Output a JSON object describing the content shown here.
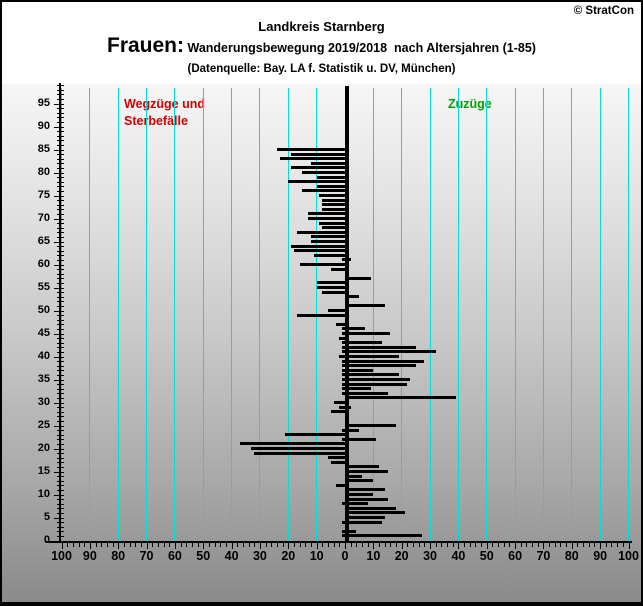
{
  "header": {
    "copyright": "© StratCon",
    "title": "Landkreis Starnberg",
    "subtitle_prefix": "Frauen:",
    "subtitle_text": " Wanderungsbewegung 2019/2018  nach Altersjahren (1-85)",
    "source": "(Datenquelle: Bay. LA f. Statistik u. DV, München)"
  },
  "chart_data": {
    "type": "bar",
    "orientation": "horizontal-pyramid",
    "title": "Landkreis Starnberg",
    "subtitle": "Frauen: Wanderungsbewegung 2019/2018 nach Altersjahren (1-85)",
    "source": "(Datenquelle: Bay. LA f. Statistik u. DV, München)",
    "legend": {
      "left_label_line1": "Wegzüge und",
      "left_label_line2": "Sterbefälle",
      "left_color": "#d40000",
      "right_label": "Zuzüge",
      "right_color": "#00a400"
    },
    "colors": {
      "gridline": "#00dede",
      "bar": "#000000",
      "axis": "#000000"
    },
    "x_axis": {
      "min": -100,
      "max": 100,
      "major_tick_step": 10,
      "minor_tick_step": 2,
      "major_tick_values": [
        -100,
        -90,
        -80,
        -70,
        -60,
        -50,
        -40,
        -30,
        -20,
        -10,
        0,
        10,
        20,
        30,
        40,
        50,
        60,
        70,
        80,
        90,
        100
      ],
      "labels": [
        "100",
        "90",
        "80",
        "70",
        "60",
        "50",
        "40",
        "30",
        "20",
        "10",
        "0",
        "10",
        "20",
        "30",
        "40",
        "50",
        "60",
        "70",
        "80",
        "90",
        "100"
      ]
    },
    "y_axis": {
      "min": 0,
      "max": 99,
      "label_step": 5,
      "minor_tick_step": 1,
      "labels": [
        "0",
        "5",
        "10",
        "15",
        "20",
        "25",
        "30",
        "35",
        "40",
        "45",
        "50",
        "55",
        "60",
        "65",
        "70",
        "75",
        "80",
        "85",
        "90",
        "95"
      ]
    },
    "series": [
      {
        "name": "Wegzüge und Sterbefälle",
        "side": "left",
        "color": "#000000"
      },
      {
        "name": "Zuzüge",
        "side": "right",
        "color": "#000000"
      }
    ],
    "bars_note": "triples: [age, wegzuege_sterbefaelle(left), zuzuege(right)]",
    "bars": [
      [
        1,
        1,
        27
      ],
      [
        2,
        1,
        4
      ],
      [
        3,
        0,
        0
      ],
      [
        4,
        1,
        13
      ],
      [
        5,
        0,
        14
      ],
      [
        6,
        0,
        21
      ],
      [
        7,
        0,
        18
      ],
      [
        8,
        1,
        8
      ],
      [
        9,
        0,
        15
      ],
      [
        10,
        0,
        10
      ],
      [
        11,
        0,
        14
      ],
      [
        12,
        3,
        0
      ],
      [
        13,
        0,
        10
      ],
      [
        14,
        0,
        6
      ],
      [
        15,
        0,
        15
      ],
      [
        16,
        0,
        12
      ],
      [
        17,
        5,
        0
      ],
      [
        18,
        6,
        0
      ],
      [
        19,
        32,
        0
      ],
      [
        20,
        33,
        0
      ],
      [
        21,
        37,
        0
      ],
      [
        22,
        1,
        11
      ],
      [
        23,
        21,
        0
      ],
      [
        24,
        1,
        5
      ],
      [
        25,
        0,
        18
      ],
      [
        26,
        0,
        0
      ],
      [
        27,
        0,
        0
      ],
      [
        28,
        5,
        0
      ],
      [
        29,
        2,
        2
      ],
      [
        30,
        4,
        0
      ],
      [
        31,
        0,
        39
      ],
      [
        32,
        1,
        15
      ],
      [
        33,
        1,
        9
      ],
      [
        34,
        1,
        22
      ],
      [
        35,
        1,
        23
      ],
      [
        36,
        1,
        19
      ],
      [
        37,
        1,
        10
      ],
      [
        38,
        1,
        25
      ],
      [
        39,
        1,
        28
      ],
      [
        40,
        2,
        19
      ],
      [
        41,
        1,
        32
      ],
      [
        42,
        1,
        25
      ],
      [
        43,
        1,
        13
      ],
      [
        44,
        2,
        0
      ],
      [
        45,
        1,
        16
      ],
      [
        46,
        1,
        7
      ],
      [
        47,
        3,
        0
      ],
      [
        48,
        0,
        0
      ],
      [
        49,
        17,
        0
      ],
      [
        50,
        6,
        0
      ],
      [
        51,
        0,
        14
      ],
      [
        52,
        0,
        0
      ],
      [
        53,
        0,
        5
      ],
      [
        54,
        8,
        0
      ],
      [
        55,
        10,
        0
      ],
      [
        56,
        10,
        0
      ],
      [
        57,
        0,
        9
      ],
      [
        58,
        0,
        0
      ],
      [
        59,
        5,
        0
      ],
      [
        60,
        16,
        0
      ],
      [
        61,
        1,
        2
      ],
      [
        62,
        11,
        0
      ],
      [
        63,
        18,
        0
      ],
      [
        64,
        19,
        0
      ],
      [
        65,
        12,
        0
      ],
      [
        66,
        12,
        0
      ],
      [
        67,
        17,
        0
      ],
      [
        68,
        8,
        0
      ],
      [
        69,
        9,
        0
      ],
      [
        70,
        13,
        0
      ],
      [
        71,
        13,
        0
      ],
      [
        72,
        8,
        0
      ],
      [
        73,
        8,
        0
      ],
      [
        74,
        8,
        0
      ],
      [
        75,
        9,
        0
      ],
      [
        76,
        15,
        0
      ],
      [
        77,
        10,
        0
      ],
      [
        78,
        20,
        0
      ],
      [
        79,
        10,
        0
      ],
      [
        80,
        15,
        0
      ],
      [
        81,
        19,
        0
      ],
      [
        82,
        12,
        0
      ],
      [
        83,
        23,
        0
      ],
      [
        84,
        19,
        0
      ],
      [
        85,
        24,
        0
      ]
    ]
  }
}
